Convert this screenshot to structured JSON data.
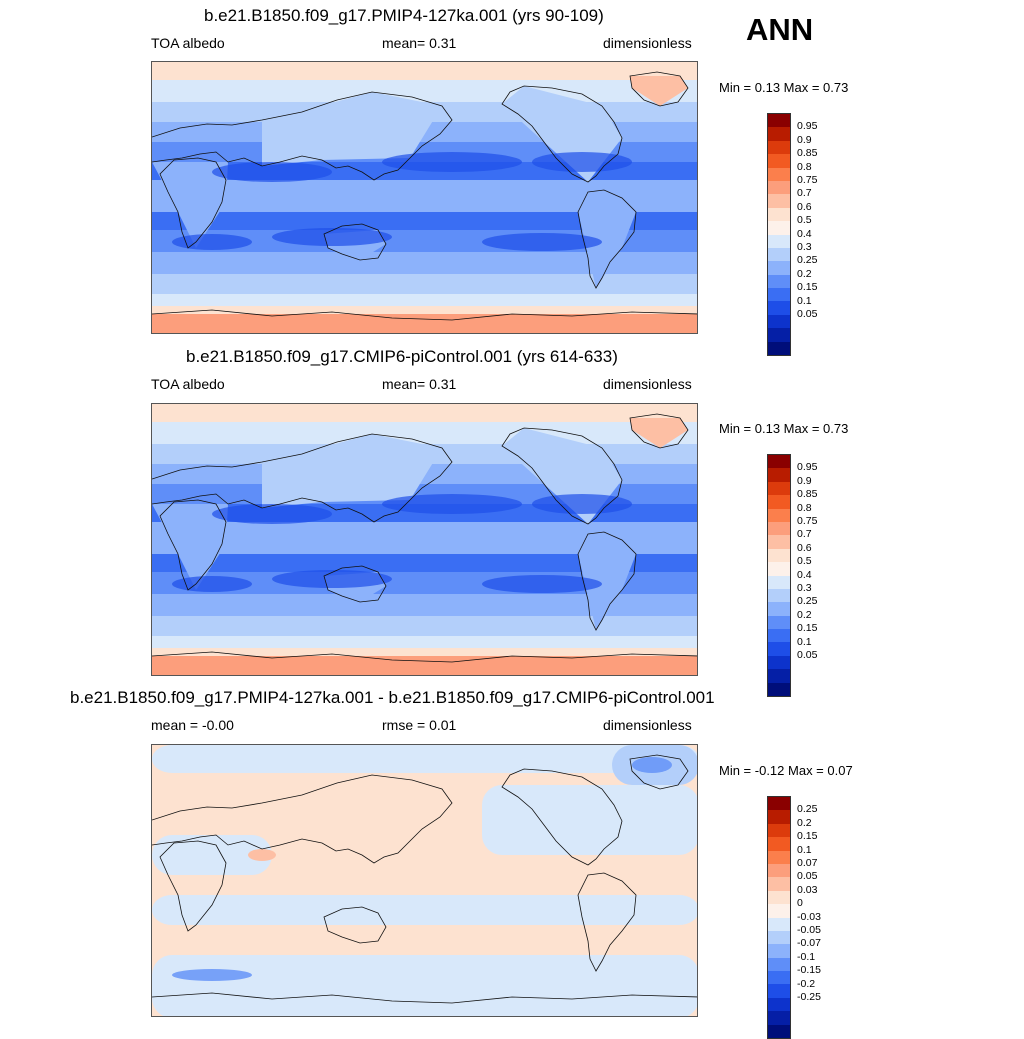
{
  "season": "ANN",
  "panels": [
    {
      "title": "b.e21.B1850.f09_g17.PMIP4-127ka.001 (yrs 90-109)",
      "left_label": "TOA albedo",
      "center_label": "mean=   0.31",
      "right_label": "dimensionless",
      "minmax": "Min =   0.13 Max =   0.73",
      "kind": "abs"
    },
    {
      "title": "b.e21.B1850.f09_g17.CMIP6-piControl.001 (yrs 614-633)",
      "left_label": "TOA albedo",
      "center_label": "mean=   0.31",
      "right_label": "dimensionless",
      "minmax": "Min =   0.13 Max =   0.73",
      "kind": "abs"
    },
    {
      "title": "b.e21.B1850.f09_g17.PMIP4-127ka.001 - b.e21.B1850.f09_g17.CMIP6-piControl.001",
      "left_label": "mean =  -0.00",
      "center_label": "rmse =   0.01",
      "right_label": "dimensionless",
      "minmax": "Min =  -0.12 Max =   0.07",
      "kind": "diff"
    }
  ],
  "chart_data": [
    {
      "type": "heatmap",
      "title": "b.e21.B1850.f09_g17.PMIP4-127ka.001 (yrs 90-109)",
      "variable": "TOA albedo",
      "units": "dimensionless",
      "mean": 0.31,
      "min": 0.13,
      "max": 0.73,
      "colorbar_levels": [
        "0.95",
        "0.9",
        "0.85",
        "0.8",
        "0.75",
        "0.7",
        "0.6",
        "0.5",
        "0.4",
        "0.3",
        "0.25",
        "0.2",
        "0.15",
        "0.1",
        "0.05"
      ],
      "colorbar_colors": [
        "#8a0000",
        "#b81c00",
        "#dc3b0c",
        "#f25a22",
        "#fb7f4c",
        "#fc9e7c",
        "#fdbfa4",
        "#fde2d0",
        "#fdf1ea",
        "#d8e8fa",
        "#b3cffa",
        "#8cb2fb",
        "#5f8ef8",
        "#3a6ef3",
        "#1e4ee8",
        "#0d33cc",
        "#051fa6",
        "#000e7a"
      ]
    },
    {
      "type": "heatmap",
      "title": "b.e21.B1850.f09_g17.CMIP6-piControl.001 (yrs 614-633)",
      "variable": "TOA albedo",
      "units": "dimensionless",
      "mean": 0.31,
      "min": 0.13,
      "max": 0.73,
      "colorbar_levels": [
        "0.95",
        "0.9",
        "0.85",
        "0.8",
        "0.75",
        "0.7",
        "0.6",
        "0.5",
        "0.4",
        "0.3",
        "0.25",
        "0.2",
        "0.15",
        "0.1",
        "0.05"
      ],
      "colorbar_colors": [
        "#8a0000",
        "#b81c00",
        "#dc3b0c",
        "#f25a22",
        "#fb7f4c",
        "#fc9e7c",
        "#fdbfa4",
        "#fde2d0",
        "#fdf1ea",
        "#d8e8fa",
        "#b3cffa",
        "#8cb2fb",
        "#5f8ef8",
        "#3a6ef3",
        "#1e4ee8",
        "#0d33cc",
        "#051fa6",
        "#000e7a"
      ]
    },
    {
      "type": "heatmap",
      "title": "b.e21.B1850.f09_g17.PMIP4-127ka.001 - b.e21.B1850.f09_g17.CMIP6-piControl.001",
      "units": "dimensionless",
      "mean": -0.0,
      "rmse": 0.01,
      "min": -0.12,
      "max": 0.07,
      "colorbar_levels": [
        "0.25",
        "0.2",
        "0.15",
        "0.1",
        "0.07",
        "0.05",
        "0.03",
        "0",
        "-0.03",
        "-0.05",
        "-0.07",
        "-0.1",
        "-0.15",
        "-0.2",
        "-0.25"
      ],
      "colorbar_colors": [
        "#8a0000",
        "#b81c00",
        "#dc3b0c",
        "#f25a22",
        "#fb7f4c",
        "#fc9e7c",
        "#fdbfa4",
        "#fde2d0",
        "#fdf1ea",
        "#d8e8fa",
        "#b3cffa",
        "#8cb2fb",
        "#5f8ef8",
        "#3a6ef3",
        "#1e4ee8",
        "#0d33cc",
        "#051fa6",
        "#000e7a"
      ]
    }
  ]
}
